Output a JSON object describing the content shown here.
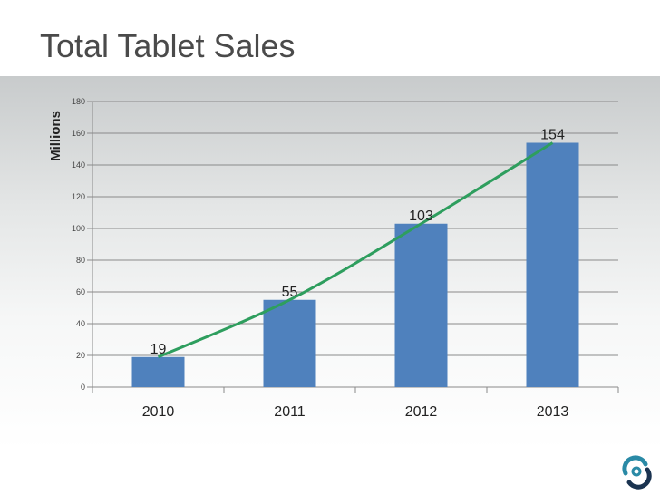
{
  "chart_data": {
    "type": "bar",
    "title": "Total Tablet Sales",
    "xlabel": "",
    "ylabel": "Millions",
    "categories": [
      "2010",
      "2011",
      "2012",
      "2013"
    ],
    "values": [
      19,
      55,
      103,
      154
    ],
    "data_labels": [
      "19",
      "55",
      "103",
      "154"
    ],
    "ylim": [
      0,
      180
    ],
    "yticks": [
      0,
      20,
      40,
      60,
      80,
      100,
      120,
      140,
      160,
      180
    ],
    "grid": true,
    "legend": "none",
    "trendline": {
      "type": "line",
      "values": [
        19,
        55,
        103,
        154
      ]
    }
  },
  "colors": {
    "bar": "#4f81bd",
    "trend": "#2e9e5e",
    "grid": "#8a8a8a",
    "tick_text": "#444444",
    "logo_teal": "#2a8aa6",
    "logo_dark": "#1a3350"
  },
  "logo": {
    "icon": "circular-arrows-logo-icon"
  }
}
